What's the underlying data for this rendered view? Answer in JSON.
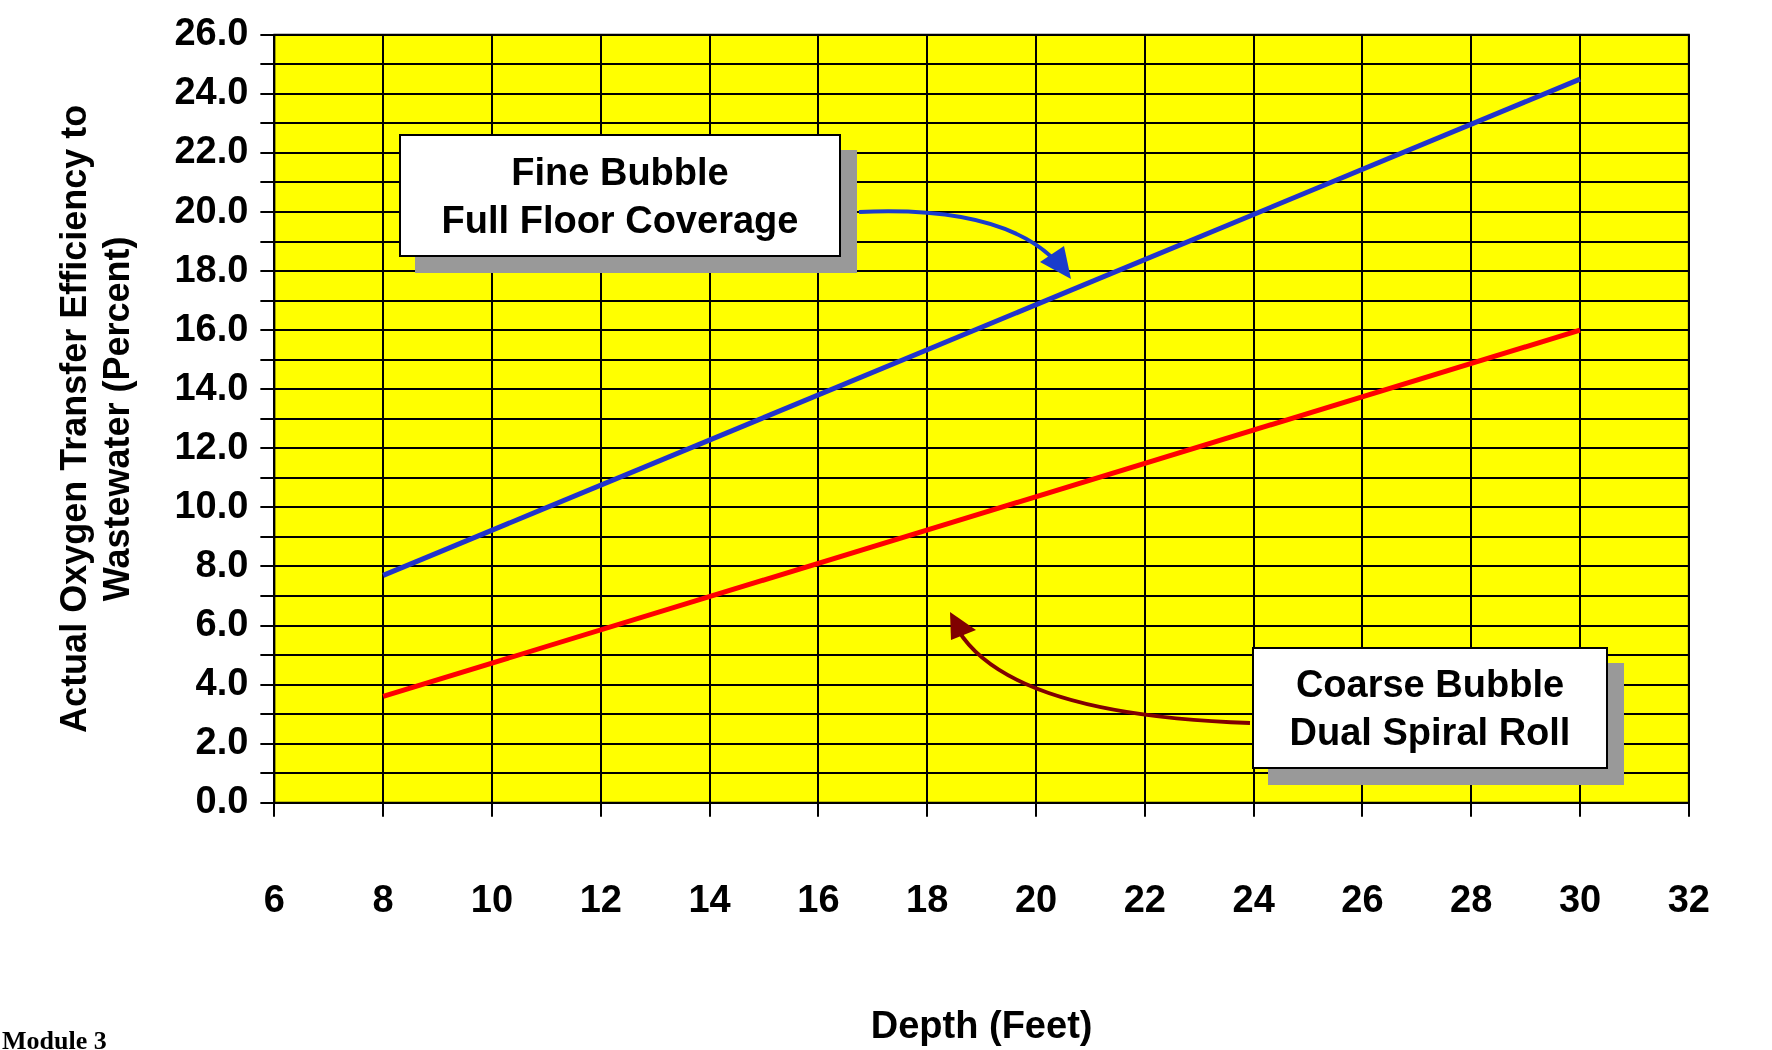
{
  "chart_data": {
    "type": "line",
    "xlabel": "Depth (Feet)",
    "ylabel": "Actual Oxygen Transfer Efficiency to\nWastewater (Percent)",
    "xlim": [
      6,
      32
    ],
    "xticks": [
      6,
      8,
      10,
      12,
      14,
      16,
      18,
      20,
      22,
      24,
      26,
      28,
      30,
      32
    ],
    "ylim": [
      0,
      26
    ],
    "yticks": [
      {
        "value": 0,
        "label": "0.0"
      },
      {
        "value": 1,
        "label": null
      },
      {
        "value": 2,
        "label": "2.0"
      },
      {
        "value": 3,
        "label": null
      },
      {
        "value": 4,
        "label": "4.0"
      },
      {
        "value": 5,
        "label": null
      },
      {
        "value": 6,
        "label": "6.0"
      },
      {
        "value": 7,
        "label": null
      },
      {
        "value": 8,
        "label": "8.0"
      },
      {
        "value": 9,
        "label": null
      },
      {
        "value": 10,
        "label": "10.0"
      },
      {
        "value": 11,
        "label": null
      },
      {
        "value": 12,
        "label": "12.0"
      },
      {
        "value": 13,
        "label": null
      },
      {
        "value": 14,
        "label": "14.0"
      },
      {
        "value": 15,
        "label": null
      },
      {
        "value": 16,
        "label": "16.0"
      },
      {
        "value": 17,
        "label": null
      },
      {
        "value": 18,
        "label": "18.0"
      },
      {
        "value": 19,
        "label": null
      },
      {
        "value": 20,
        "label": "20.0"
      },
      {
        "value": 21,
        "label": null
      },
      {
        "value": 22,
        "label": "22.0"
      },
      {
        "value": 23,
        "label": null
      },
      {
        "value": 24,
        "label": "24.0"
      },
      {
        "value": 25,
        "label": null
      },
      {
        "value": 26,
        "label": "26.0"
      }
    ],
    "x": [
      8,
      30
    ],
    "grid": true,
    "legend": false,
    "marker": "none",
    "line_style": "solid",
    "series": [
      {
        "color": "#2233cc",
        "values": [
          7.7,
          24.5
        ]
      },
      {
        "color": "#ff0000",
        "values": [
          3.6,
          16.0
        ]
      }
    ],
    "annotations": [
      "Fine Bubble\nFull Floor Coverage",
      "Coarse Bubble\nDual Spiral Roll",
      "Module 3"
    ]
  }
}
